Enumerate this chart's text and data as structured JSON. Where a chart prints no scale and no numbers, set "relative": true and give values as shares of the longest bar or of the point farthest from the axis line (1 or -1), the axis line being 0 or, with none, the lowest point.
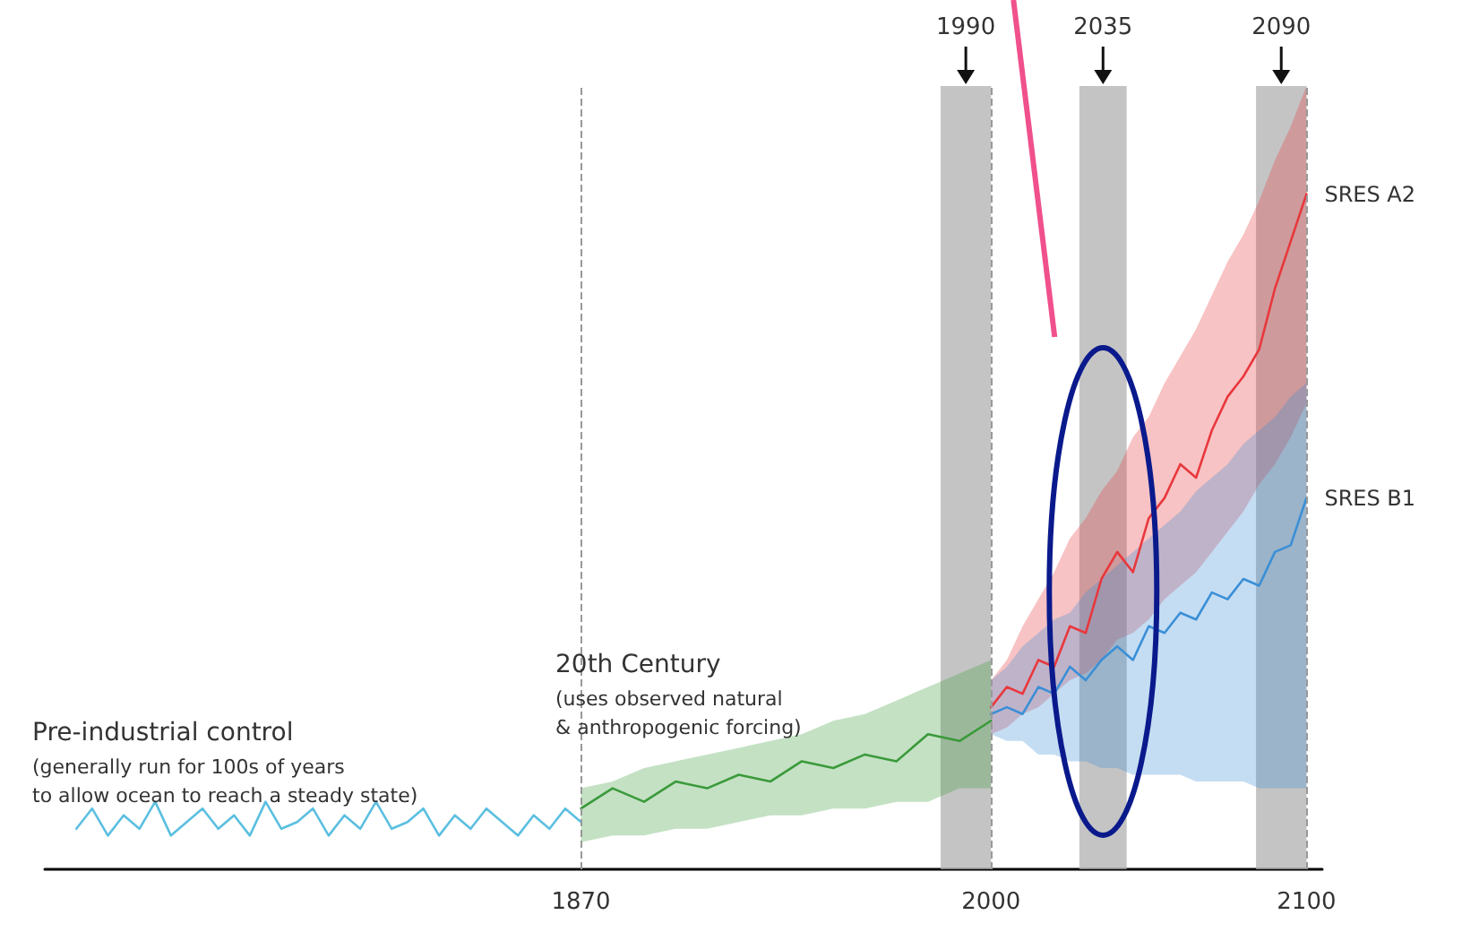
{
  "chart_data": {
    "type": "line",
    "relative": true,
    "grid": false,
    "legend": false,
    "marker": "none",
    "line_style": "solid",
    "xlim": [
      1700,
      2105
    ],
    "xticks": [
      1870,
      2000,
      2100
    ],
    "series": [
      {
        "color": "#5bbfe0",
        "x": [
          1710,
          1715,
          1720,
          1725,
          1730,
          1735,
          1740,
          1745,
          1750,
          1755,
          1760,
          1765,
          1770,
          1775,
          1780,
          1785,
          1790,
          1795,
          1800,
          1805,
          1810,
          1815,
          1820,
          1825,
          1830,
          1835,
          1840,
          1845,
          1850,
          1855,
          1860,
          1865,
          1870
        ],
        "values": [
          0.06,
          0.09,
          0.05,
          0.08,
          0.06,
          0.1,
          0.05,
          0.07,
          0.09,
          0.06,
          0.08,
          0.05,
          0.1,
          0.06,
          0.07,
          0.09,
          0.05,
          0.08,
          0.06,
          0.1,
          0.06,
          0.07,
          0.09,
          0.05,
          0.08,
          0.06,
          0.09,
          0.07,
          0.05,
          0.08,
          0.06,
          0.09,
          0.07
        ]
      },
      {
        "color": "#3a9a3a",
        "x": [
          1870,
          1880,
          1890,
          1900,
          1910,
          1920,
          1930,
          1940,
          1950,
          1960,
          1970,
          1980,
          1990,
          2000
        ],
        "values": [
          0.09,
          0.12,
          0.1,
          0.13,
          0.12,
          0.14,
          0.13,
          0.16,
          0.15,
          0.17,
          0.16,
          0.2,
          0.19,
          0.22
        ],
        "lower": [
          0.04,
          0.05,
          0.05,
          0.06,
          0.06,
          0.07,
          0.08,
          0.08,
          0.09,
          0.09,
          0.1,
          0.1,
          0.12,
          0.12
        ],
        "upper": [
          0.12,
          0.13,
          0.15,
          0.16,
          0.17,
          0.18,
          0.19,
          0.2,
          0.22,
          0.23,
          0.25,
          0.27,
          0.29,
          0.31
        ]
      },
      {
        "name": "SRES A2",
        "color": "#e8383d",
        "x": [
          2000,
          2005,
          2010,
          2015,
          2020,
          2025,
          2030,
          2035,
          2040,
          2045,
          2050,
          2055,
          2060,
          2065,
          2070,
          2075,
          2080,
          2085,
          2090,
          2095,
          2100
        ],
        "values": [
          0.24,
          0.27,
          0.26,
          0.31,
          0.3,
          0.36,
          0.35,
          0.43,
          0.47,
          0.44,
          0.52,
          0.55,
          0.6,
          0.58,
          0.65,
          0.7,
          0.73,
          0.77,
          0.86,
          0.93,
          1.0
        ],
        "lower": [
          0.2,
          0.21,
          0.23,
          0.24,
          0.26,
          0.28,
          0.29,
          0.31,
          0.34,
          0.35,
          0.37,
          0.4,
          0.42,
          0.44,
          0.47,
          0.5,
          0.53,
          0.57,
          0.6,
          0.64,
          0.69
        ],
        "upper": [
          0.28,
          0.31,
          0.36,
          0.4,
          0.44,
          0.49,
          0.52,
          0.56,
          0.59,
          0.64,
          0.67,
          0.72,
          0.76,
          0.8,
          0.85,
          0.9,
          0.94,
          0.99,
          1.05,
          1.1,
          1.16
        ]
      },
      {
        "name": "SRES B1",
        "color": "#3b8fd6",
        "x": [
          2000,
          2005,
          2010,
          2015,
          2020,
          2025,
          2030,
          2035,
          2040,
          2045,
          2050,
          2055,
          2060,
          2065,
          2070,
          2075,
          2080,
          2085,
          2090,
          2095,
          2100
        ],
        "values": [
          0.23,
          0.24,
          0.23,
          0.27,
          0.26,
          0.3,
          0.28,
          0.31,
          0.33,
          0.31,
          0.36,
          0.35,
          0.38,
          0.37,
          0.41,
          0.4,
          0.43,
          0.42,
          0.47,
          0.48,
          0.55
        ],
        "lower": [
          0.2,
          0.19,
          0.19,
          0.17,
          0.17,
          0.16,
          0.16,
          0.15,
          0.15,
          0.14,
          0.14,
          0.14,
          0.14,
          0.13,
          0.13,
          0.13,
          0.13,
          0.12,
          0.12,
          0.12,
          0.12
        ],
        "upper": [
          0.28,
          0.3,
          0.33,
          0.35,
          0.37,
          0.38,
          0.41,
          0.43,
          0.45,
          0.47,
          0.49,
          0.51,
          0.53,
          0.56,
          0.58,
          0.6,
          0.63,
          0.65,
          0.67,
          0.7,
          0.72
        ]
      }
    ],
    "ref_lines": [
      {
        "axis": "x",
        "value": 1870,
        "line_style": "dashed",
        "color": "#999999"
      },
      {
        "axis": "x",
        "value": 2000,
        "line_style": "dashed",
        "color": "#999999"
      },
      {
        "axis": "x",
        "value": 2100,
        "line_style": "dashed",
        "color": "#999999"
      }
    ],
    "bands": [
      {
        "axis": "x",
        "from": 1984,
        "to": 2000,
        "label": "1990",
        "color": "#b0b0b0"
      },
      {
        "axis": "x",
        "from": 2028,
        "to": 2043,
        "label": "2035",
        "color": "#b0b0b0"
      },
      {
        "axis": "x",
        "from": 2084,
        "to": 2100,
        "label": "2090",
        "color": "#b0b0b0"
      }
    ],
    "annotations": [
      "Pre-industrial control",
      "(generally run for 100s of years\nto allow ocean to reach a steady state)",
      "20th Century",
      "(uses observed natural\n& anthropogenic forcing)"
    ]
  }
}
